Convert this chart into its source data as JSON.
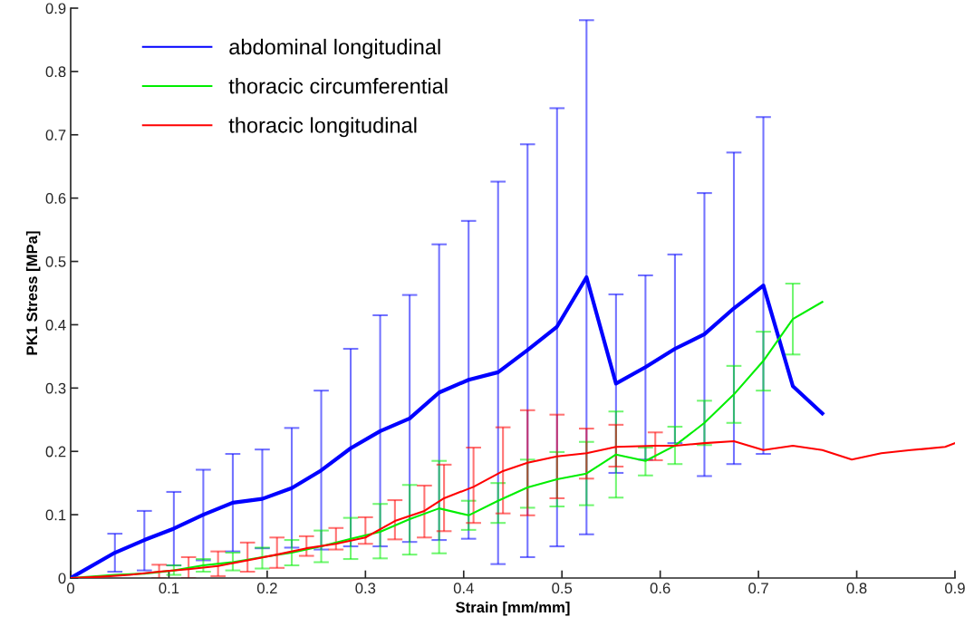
{
  "chart_data": {
    "type": "line",
    "xlabel": "Strain [mm/mm]",
    "ylabel": "PK1 Stress [MPa]",
    "xlim": [
      0,
      0.9
    ],
    "xticks": [
      0,
      0.1,
      0.2,
      0.3,
      0.4,
      0.5,
      0.6,
      0.7,
      0.8,
      0.9
    ],
    "ylim": [
      0,
      0.9
    ],
    "yticks": [
      0,
      0.1,
      0.2,
      0.3,
      0.4,
      0.5,
      0.6,
      0.7,
      0.8,
      0.9
    ],
    "grid": false,
    "legend": "top left",
    "marker": "none",
    "line_style": "solid",
    "series": [
      {
        "name": "abdominal longitudinal",
        "color": "#0000ff",
        "x": [
          0,
          0.045,
          0.075,
          0.105,
          0.135,
          0.165,
          0.195,
          0.225,
          0.255,
          0.285,
          0.315,
          0.345,
          0.375,
          0.405,
          0.435,
          0.465,
          0.495,
          0.525,
          0.555,
          0.585,
          0.615,
          0.645,
          0.675,
          0.705,
          0.735,
          0.765
        ],
        "values": [
          0,
          0.04,
          0.06,
          0.078,
          0.1,
          0.119,
          0.125,
          0.142,
          0.17,
          0.205,
          0.232,
          0.252,
          0.293,
          0.313,
          0.325,
          0.36,
          0.397,
          0.475,
          0.307,
          0.333,
          0.362,
          0.385,
          0.426,
          0.462,
          0.303,
          0.26
        ],
        "errors": [
          null,
          [
            0.01,
            0.07
          ],
          [
            0.012,
            0.106
          ],
          [
            0.02,
            0.136
          ],
          [
            0.028,
            0.171
          ],
          [
            0.042,
            0.196
          ],
          [
            0.047,
            0.203
          ],
          [
            0.048,
            0.237
          ],
          [
            0.045,
            0.296
          ],
          [
            0.05,
            0.362
          ],
          [
            0.05,
            0.415
          ],
          [
            0.057,
            0.447
          ],
          [
            0.06,
            0.527
          ],
          [
            0.062,
            0.564
          ],
          [
            0.022,
            0.626
          ],
          [
            0.033,
            0.685
          ],
          [
            0.05,
            0.742
          ],
          [
            0.069,
            0.881
          ],
          [
            0.166,
            0.448
          ],
          [
            0.187,
            0.478
          ],
          [
            0.213,
            0.511
          ],
          [
            0.161,
            0.608
          ],
          [
            0.18,
            0.672
          ],
          [
            0.196,
            0.728
          ],
          null,
          null
        ]
      },
      {
        "name": "thoracic circumferential",
        "color": "#00ee00",
        "x": [
          0,
          0.045,
          0.075,
          0.105,
          0.135,
          0.165,
          0.195,
          0.225,
          0.255,
          0.285,
          0.315,
          0.345,
          0.375,
          0.405,
          0.435,
          0.465,
          0.495,
          0.525,
          0.555,
          0.585,
          0.615,
          0.645,
          0.675,
          0.705,
          0.735,
          0.765
        ],
        "values": [
          0,
          0.005,
          0.007,
          0.012,
          0.02,
          0.025,
          0.033,
          0.04,
          0.05,
          0.062,
          0.073,
          0.093,
          0.11,
          0.099,
          0.122,
          0.143,
          0.156,
          0.165,
          0.195,
          0.185,
          0.209,
          0.245,
          0.29,
          0.343,
          0.409,
          0.436
        ],
        "errors": [
          null,
          null,
          null,
          [
            0.005,
            0.02
          ],
          [
            0.01,
            0.03
          ],
          [
            0.012,
            0.04
          ],
          [
            0.015,
            0.048
          ],
          [
            0.02,
            0.06
          ],
          [
            0.025,
            0.075
          ],
          [
            0.03,
            0.095
          ],
          [
            0.031,
            0.117
          ],
          [
            0.037,
            0.147
          ],
          [
            0.039,
            0.185
          ],
          [
            0.076,
            0.122
          ],
          [
            0.087,
            0.15
          ],
          [
            0.111,
            0.187
          ],
          [
            0.113,
            0.199
          ],
          [
            0.115,
            0.215
          ],
          [
            0.127,
            0.263
          ],
          [
            0.162,
            0.206
          ],
          [
            0.18,
            0.239
          ],
          [
            0.21,
            0.28
          ],
          [
            0.245,
            0.335
          ],
          [
            0.296,
            0.389
          ],
          [
            0.353,
            0.465
          ],
          null
        ]
      },
      {
        "name": "thoracic longitudinal",
        "color": "#ff0000",
        "x": [
          0,
          0.03,
          0.06,
          0.09,
          0.12,
          0.15,
          0.18,
          0.21,
          0.24,
          0.27,
          0.3,
          0.33,
          0.36,
          0.38,
          0.41,
          0.44,
          0.465,
          0.495,
          0.525,
          0.555,
          0.595,
          0.615,
          0.645,
          0.675,
          0.705,
          0.735,
          0.765,
          0.795,
          0.825,
          0.855,
          0.89,
          0.9
        ],
        "values": [
          0,
          0.002,
          0.005,
          0.01,
          0.014,
          0.019,
          0.028,
          0.037,
          0.047,
          0.054,
          0.064,
          0.09,
          0.106,
          0.126,
          0.144,
          0.169,
          0.182,
          0.192,
          0.197,
          0.207,
          0.209,
          0.209,
          0.213,
          0.216,
          0.202,
          0.209,
          0.202,
          0.187,
          0.197,
          0.202,
          0.207,
          0.213
        ],
        "errors": [
          null,
          null,
          null,
          [
            0,
            0.021
          ],
          [
            0,
            0.033
          ],
          [
            0.003,
            0.042
          ],
          [
            0.01,
            0.056
          ],
          [
            0.016,
            0.064
          ],
          [
            0.035,
            0.066
          ],
          [
            0.045,
            0.079
          ],
          [
            0.054,
            0.096
          ],
          [
            0.061,
            0.123
          ],
          [
            0.064,
            0.146
          ],
          [
            0.074,
            0.179
          ],
          [
            0.087,
            0.206
          ],
          [
            0.102,
            0.238
          ],
          [
            0.099,
            0.265
          ],
          [
            0.126,
            0.258
          ],
          [
            0.157,
            0.236
          ],
          [
            0.176,
            0.242
          ],
          [
            0.186,
            0.23
          ],
          null,
          null,
          null,
          null,
          null,
          null,
          null,
          null,
          null,
          null,
          null
        ]
      }
    ]
  }
}
